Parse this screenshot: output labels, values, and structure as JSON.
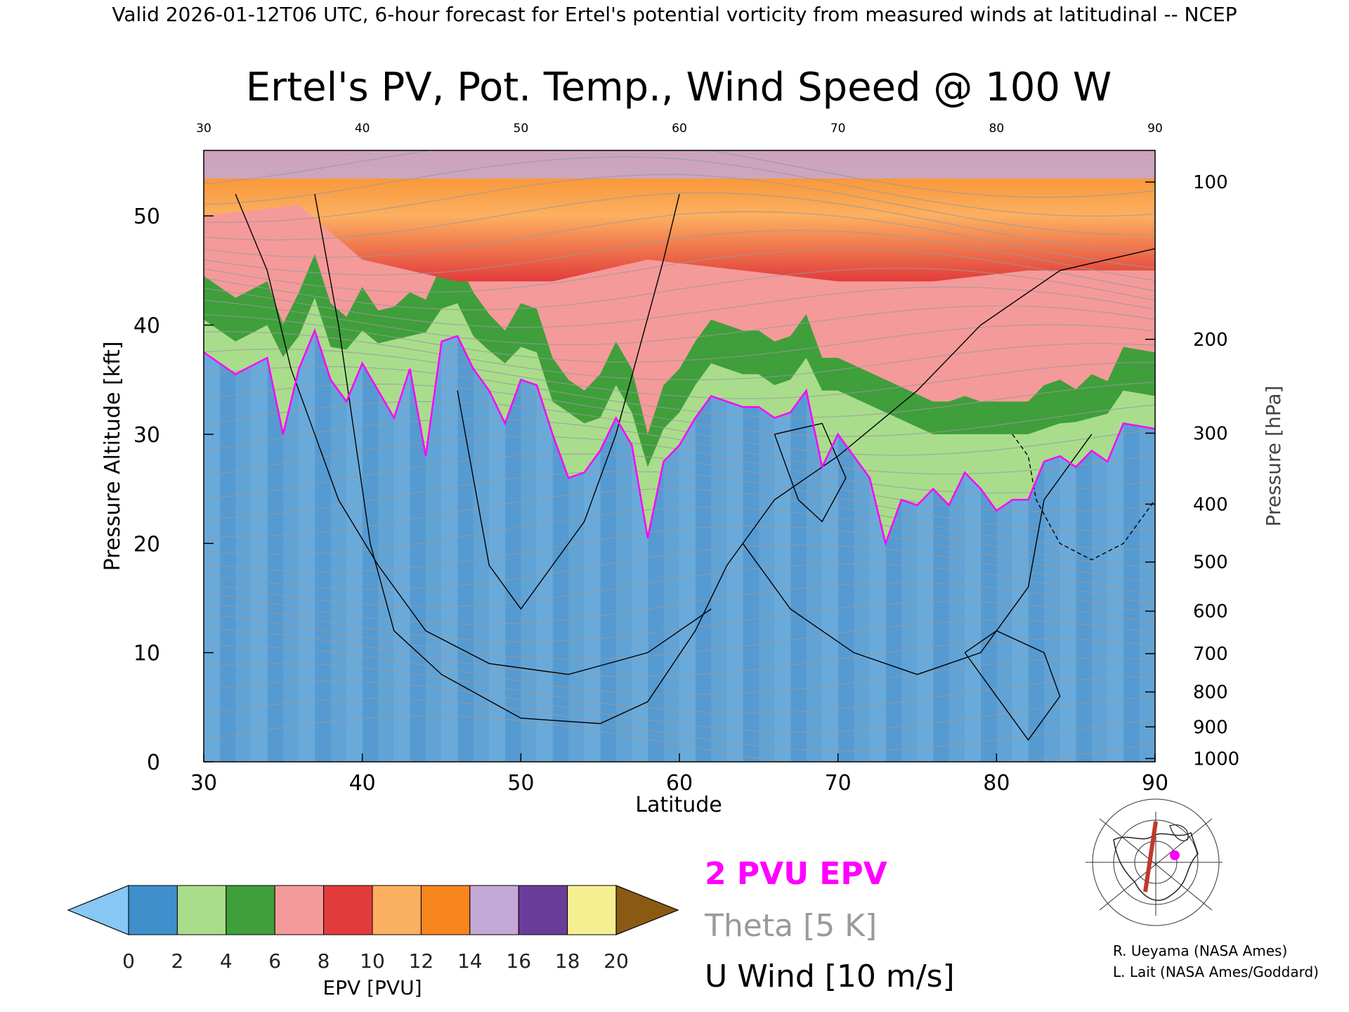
{
  "header": {
    "banner": "Valid 2026-01-12T06 UTC, 6-hour forecast for Ertel's potential vorticity from measured winds at latitudinal -- NCEP"
  },
  "chart_data": {
    "type": "heatmap",
    "title": "Ertel's PV, Pot. Temp., Wind Speed @ 100 W",
    "xlabel": "Latitude",
    "ylabel": "Pressure Altitude [kft]",
    "y2label": "Pressure [hPa]",
    "xlim": [
      30,
      90
    ],
    "ylim": [
      0,
      56
    ],
    "x_ticks": [
      "30",
      "40",
      "50",
      "60",
      "70",
      "80",
      "90"
    ],
    "y_ticks": [
      "0",
      "10",
      "20",
      "30",
      "40",
      "50"
    ],
    "pressure_ticks": [
      {
        "label": "100",
        "kft": 53.1
      },
      {
        "label": "200",
        "kft": 38.7
      },
      {
        "label": "300",
        "kft": 30.1
      },
      {
        "label": "400",
        "kft": 23.6
      },
      {
        "label": "500",
        "kft": 18.3
      },
      {
        "label": "600",
        "kft": 13.8
      },
      {
        "label": "700",
        "kft": 9.9
      },
      {
        "label": "800",
        "kft": 6.4
      },
      {
        "label": "900",
        "kft": 3.2
      },
      {
        "label": "1000",
        "kft": 0.3
      }
    ],
    "pv_2pvu_contour": [
      [
        30,
        37.5
      ],
      [
        32,
        35.5
      ],
      [
        34,
        37
      ],
      [
        35,
        30
      ],
      [
        36,
        36
      ],
      [
        37,
        39.5
      ],
      [
        38,
        35
      ],
      [
        39,
        33
      ],
      [
        40,
        36.5
      ],
      [
        41,
        34
      ],
      [
        42,
        31.5
      ],
      [
        43,
        36
      ],
      [
        44,
        28
      ],
      [
        45,
        38.5
      ],
      [
        46,
        39
      ],
      [
        47,
        36
      ],
      [
        48,
        34
      ],
      [
        49,
        31
      ],
      [
        50,
        35
      ],
      [
        51,
        34.5
      ],
      [
        52,
        30
      ],
      [
        53,
        26
      ],
      [
        54,
        26.5
      ],
      [
        55,
        28.5
      ],
      [
        56,
        31.5
      ],
      [
        57,
        29
      ],
      [
        58,
        20.5
      ],
      [
        59,
        27.5
      ],
      [
        60,
        29
      ],
      [
        61,
        31.5
      ],
      [
        62,
        33.5
      ],
      [
        63,
        33
      ],
      [
        64,
        32.5
      ],
      [
        65,
        32.5
      ],
      [
        66,
        31.5
      ],
      [
        67,
        32
      ],
      [
        68,
        34
      ],
      [
        69,
        27
      ],
      [
        70,
        30
      ],
      [
        71,
        28
      ],
      [
        72,
        26
      ],
      [
        73,
        20
      ],
      [
        74,
        24
      ],
      [
        75,
        23.5
      ],
      [
        76,
        25
      ],
      [
        77,
        23.5
      ],
      [
        78,
        26.5
      ],
      [
        79,
        25
      ],
      [
        80,
        23
      ],
      [
        81,
        24
      ],
      [
        82,
        24
      ],
      [
        83,
        27.5
      ],
      [
        84,
        28
      ],
      [
        85,
        27
      ],
      [
        86,
        28.5
      ],
      [
        87,
        27.5
      ],
      [
        88,
        31
      ],
      [
        90,
        30.5
      ]
    ],
    "tropopause_band": [
      [
        30,
        37.5
      ],
      [
        36,
        37
      ],
      [
        40,
        38
      ],
      [
        46,
        40
      ],
      [
        52,
        33
      ],
      [
        58,
        27
      ],
      [
        64,
        34
      ],
      [
        70,
        34
      ],
      [
        76,
        30
      ],
      [
        82,
        30
      ],
      [
        90,
        33
      ]
    ],
    "stratosphere_band": [
      [
        30,
        50
      ],
      [
        36,
        51
      ],
      [
        40,
        46
      ],
      [
        46,
        44
      ],
      [
        52,
        44
      ],
      [
        58,
        46
      ],
      [
        64,
        45
      ],
      [
        70,
        44
      ],
      [
        76,
        44
      ],
      [
        82,
        45
      ],
      [
        90,
        45
      ]
    ],
    "colorbar": {
      "label": "EPV [PVU]",
      "ticks": [
        "0",
        "2",
        "4",
        "6",
        "8",
        "10",
        "12",
        "14",
        "16",
        "18",
        "20"
      ],
      "colors": [
        "#87c8f4",
        "#3e8fcc",
        "#a9dd8c",
        "#3f9f3b",
        "#f59a9a",
        "#e23b3b",
        "#fcb061",
        "#f7861e",
        "#c4a8d8",
        "#6a3d9a",
        "#f5ef92",
        "#8a5a13"
      ]
    },
    "legend": {
      "epv": "2 PVU EPV",
      "theta": "Theta [5 K]",
      "wind": "U Wind [10 m/s]",
      "epv_color": "#ff00ff",
      "theta_color": "#9a9a9a",
      "wind_color": "#000000"
    }
  },
  "credits": {
    "line1": "R. Ueyama (NASA Ames)",
    "line2": "L. Lait (NASA Ames/Goddard)"
  },
  "inset_map": {
    "marker_color": "#ff00ff",
    "track_color": "#c0392b"
  }
}
